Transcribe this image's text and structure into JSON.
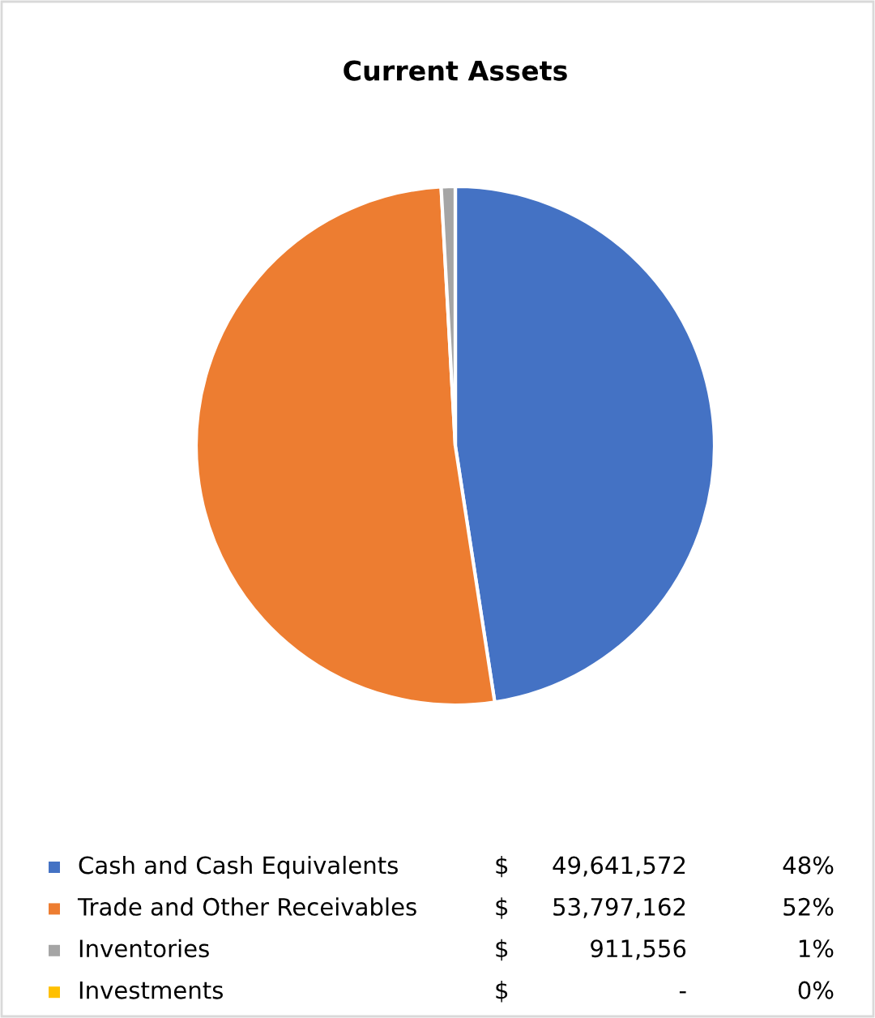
{
  "chart_data": {
    "type": "pie",
    "title": "Current Assets",
    "categories": [
      "Cash and Cash Equivalents",
      "Trade and Other Receivables",
      "Inventories",
      "Investments"
    ],
    "values": [
      49641572,
      53797162,
      911556,
      0
    ],
    "colors": [
      "#4472c4",
      "#ed7d31",
      "#a5a5a5",
      "#ffc000"
    ],
    "value_labels": [
      "49,641,572",
      "53,797,162",
      "911,556",
      "-"
    ],
    "annotations": [
      "$",
      "$",
      "$",
      "$",
      "48%",
      "52%",
      "1%",
      "0%"
    ],
    "legend": "bottom"
  }
}
